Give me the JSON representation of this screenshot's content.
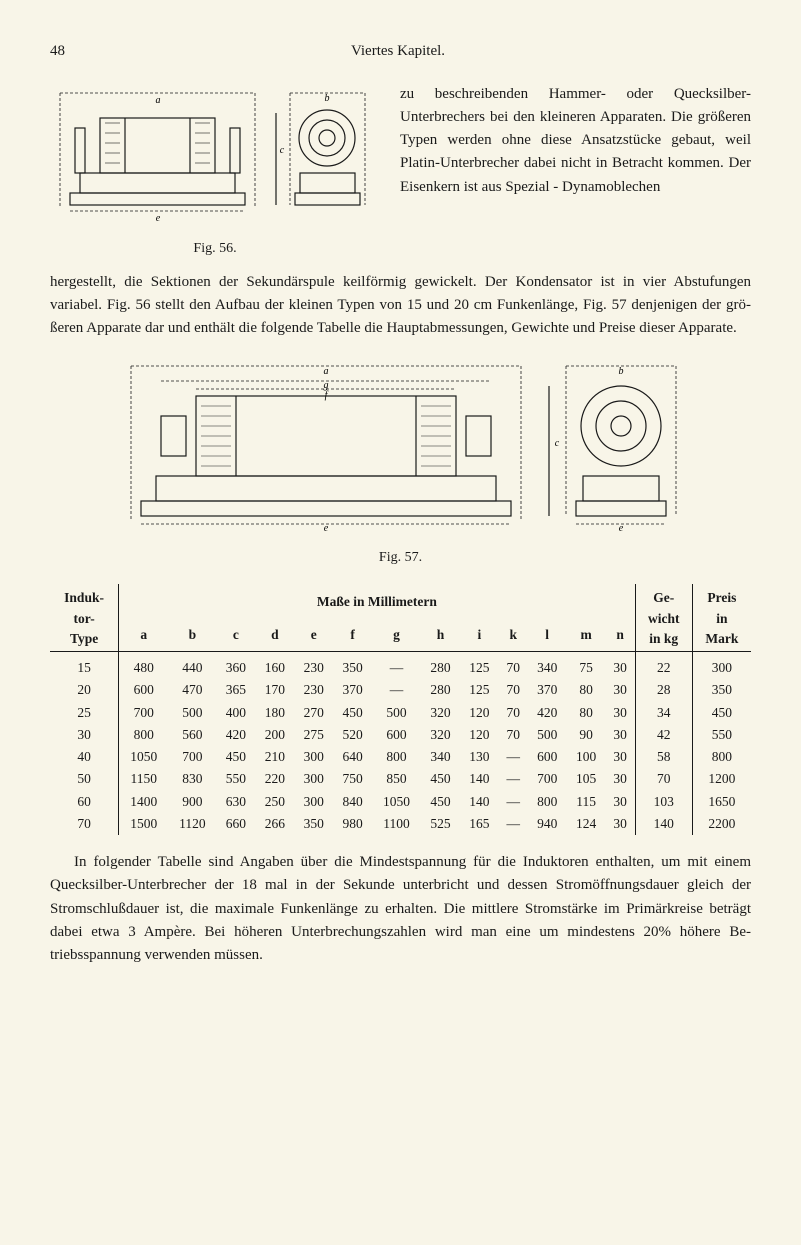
{
  "pageNumber": "48",
  "chapterTitle": "Viertes Kapitel.",
  "fig56Caption": "Fig. 56.",
  "fig57Caption": "Fig. 57.",
  "topTextPart1": "zu beschreibenden Hammer- oder Quecksilber-Unterbrechers bei den kleineren Apparaten. Die größe­ren Typen werden ohne diese Ansatzstücke gebaut, weil Platin-Unterbrecher dabei nicht in Be­tracht kommen. Der Eisenkern ist aus Spezial - Dynamoblechen",
  "bodyText1": "hergestellt, die Sektionen der Sekundärspule keilförmig gewickelt. Der Kon­densator ist in vier Abstufungen variabel. Fig. 56 stellt den Aufbau der kleinen Typen von 15 und 20 cm Funkenlänge, Fig. 57 denjenigen der grö­ßeren Apparate dar und enthält die folgende Tabelle die Hauptabmessungen, Gewichte und Preise dieser Apparate.",
  "table": {
    "headerGroup1": "Induk­tor-Type",
    "headerGroup2": "Maße in Millimetern",
    "headerGroup3": "Ge­wicht in kg",
    "headerGroup4": "Preis in Mark",
    "cols": [
      "a",
      "b",
      "c",
      "d",
      "e",
      "f",
      "g",
      "h",
      "i",
      "k",
      "l",
      "m",
      "n"
    ],
    "rows": [
      {
        "type": "15",
        "vals": [
          "480",
          "440",
          "360",
          "160",
          "230",
          "350",
          "—",
          "280",
          "125",
          "70",
          "340",
          "75",
          "30"
        ],
        "wt": "22",
        "pr": "300"
      },
      {
        "type": "20",
        "vals": [
          "600",
          "470",
          "365",
          "170",
          "230",
          "370",
          "—",
          "280",
          "125",
          "70",
          "370",
          "80",
          "30"
        ],
        "wt": "28",
        "pr": "350"
      },
      {
        "type": "25",
        "vals": [
          "700",
          "500",
          "400",
          "180",
          "270",
          "450",
          "500",
          "320",
          "120",
          "70",
          "420",
          "80",
          "30"
        ],
        "wt": "34",
        "pr": "450"
      },
      {
        "type": "30",
        "vals": [
          "800",
          "560",
          "420",
          "200",
          "275",
          "520",
          "600",
          "320",
          "120",
          "70",
          "500",
          "90",
          "30"
        ],
        "wt": "42",
        "pr": "550"
      },
      {
        "type": "40",
        "vals": [
          "1050",
          "700",
          "450",
          "210",
          "300",
          "640",
          "800",
          "340",
          "130",
          "—",
          "600",
          "100",
          "30"
        ],
        "wt": "58",
        "pr": "800"
      },
      {
        "type": "50",
        "vals": [
          "1150",
          "830",
          "550",
          "220",
          "300",
          "750",
          "850",
          "450",
          "140",
          "—",
          "700",
          "105",
          "30"
        ],
        "wt": "70",
        "pr": "1200"
      },
      {
        "type": "60",
        "vals": [
          "1400",
          "900",
          "630",
          "250",
          "300",
          "840",
          "1050",
          "450",
          "140",
          "—",
          "800",
          "115",
          "30"
        ],
        "wt": "103",
        "pr": "1650"
      },
      {
        "type": "70",
        "vals": [
          "1500",
          "1120",
          "660",
          "266",
          "350",
          "980",
          "1100",
          "525",
          "165",
          "—",
          "940",
          "124",
          "30"
        ],
        "wt": "140",
        "pr": "2200"
      }
    ]
  },
  "bottomText": "In folgender Tabelle sind Angaben über die Mindestspannung für die Induktoren enthalten, um mit einem Quecksilber-Unterbrecher der 18 mal in der Sekunde unterbricht und dessen Stromöffnungsdauer gleich der Stromschlußdauer ist, die maximale Funkenlänge zu erhalten. Die mittlere Stromstärke im Primärkreise beträgt dabei etwa 3 Ampère. Bei höheren Unterbrechungszahlen wird man eine um mindestens 20% höhere Be­triebsspannung verwenden müssen."
}
